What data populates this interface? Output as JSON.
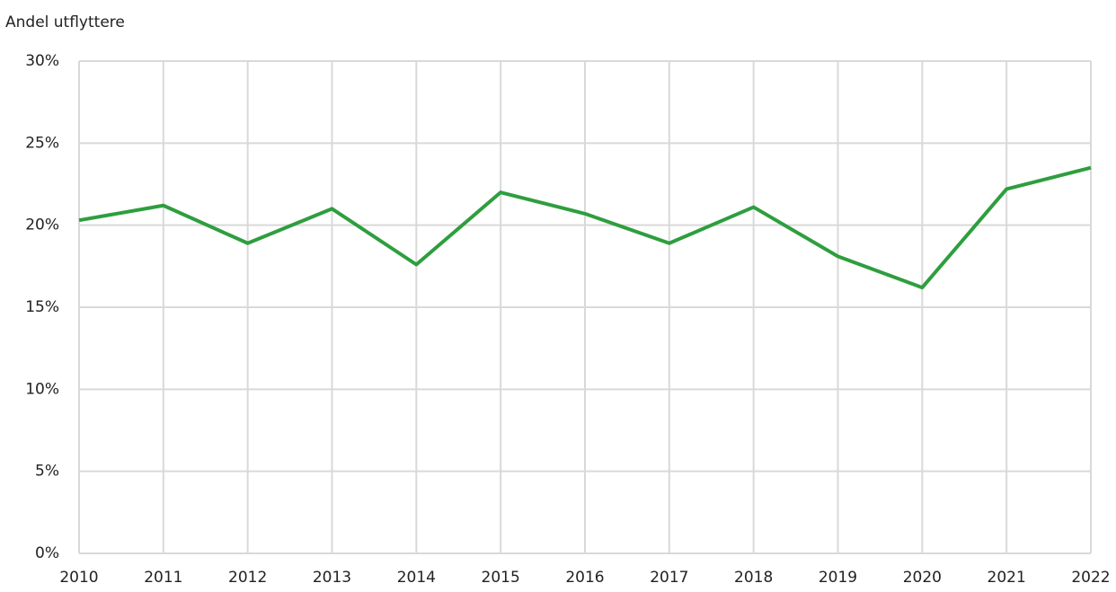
{
  "chart_data": {
    "type": "line",
    "y_label": "Andel utflyttere",
    "x": [
      2010,
      2011,
      2012,
      2013,
      2014,
      2015,
      2016,
      2017,
      2018,
      2019,
      2020,
      2021,
      2022
    ],
    "series": [
      {
        "name": "Andel utflyttere",
        "color": "#2e9e3e",
        "values": [
          20.3,
          21.2,
          18.9,
          21.0,
          17.6,
          22.0,
          20.7,
          18.9,
          21.1,
          18.1,
          16.2,
          22.2,
          23.5
        ]
      }
    ],
    "xlim": [
      2010,
      2022
    ],
    "xticks": [
      2010,
      2011,
      2012,
      2013,
      2014,
      2015,
      2016,
      2017,
      2018,
      2019,
      2020,
      2021,
      2022
    ],
    "ylim": [
      0,
      30
    ],
    "yticks": [
      {
        "value": 0,
        "label": "0%"
      },
      {
        "value": 5,
        "label": "5%"
      },
      {
        "value": 10,
        "label": "10%"
      },
      {
        "value": 15,
        "label": "15%"
      },
      {
        "value": 20,
        "label": "20%"
      },
      {
        "value": 25,
        "label": "25%"
      },
      {
        "value": 30,
        "label": "30%"
      }
    ],
    "grid": true
  }
}
